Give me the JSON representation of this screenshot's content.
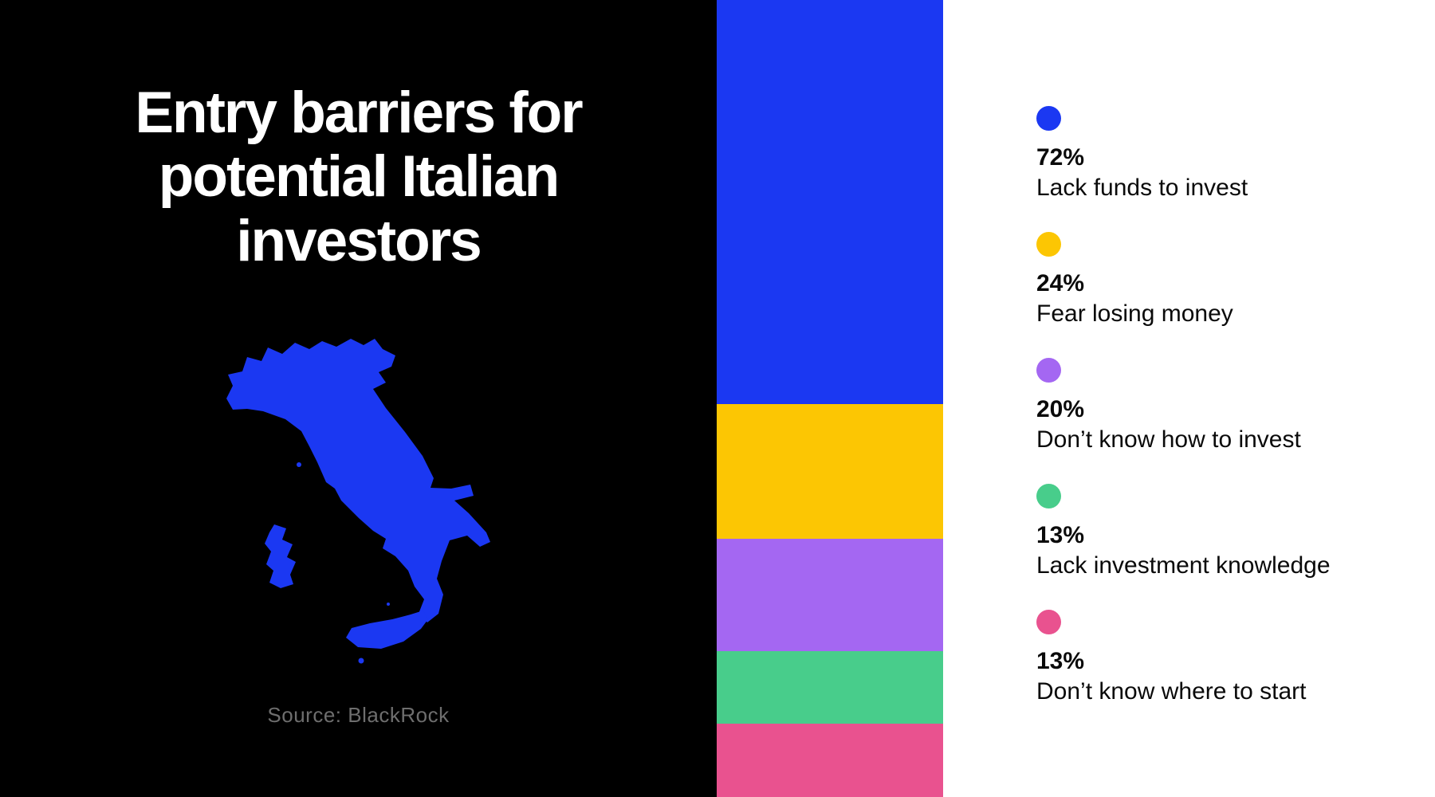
{
  "title": "Entry barriers for\npotential Italian\ninvestors",
  "source": "Source: BlackRock",
  "colors": {
    "background_left": "#000000",
    "background_right": "#ffffff",
    "title_text": "#ffffff",
    "source_text": "#6e6e6e",
    "legend_text": "#0a0a0a",
    "map_fill": "#1b38f2"
  },
  "chart_data": {
    "type": "bar",
    "subtype": "vertical-stacked-proportional",
    "title": "Entry barriers for potential Italian investors",
    "source": "Source: BlackRock",
    "legend_position": "right",
    "grid": false,
    "categories": [
      "Lack funds to invest",
      "Fear losing money",
      "Don’t know how to invest",
      "Lack investment knowledge",
      "Don’t know where to start"
    ],
    "values": [
      72,
      24,
      20,
      13,
      13
    ],
    "series": [
      {
        "name": "Lack funds to invest",
        "value": 72,
        "pct_label": "72%",
        "color": "#1b38f2"
      },
      {
        "name": "Fear losing money",
        "value": 24,
        "pct_label": "24%",
        "color": "#fcc603"
      },
      {
        "name": "Don’t know how to invest",
        "value": 20,
        "pct_label": "20%",
        "color": "#a467f2"
      },
      {
        "name": "Lack investment knowledge",
        "value": 13,
        "pct_label": "13%",
        "color": "#48cd8b"
      },
      {
        "name": "Don’t know where to start",
        "value": 13,
        "pct_label": "13%",
        "color": "#e9528f"
      }
    ]
  }
}
